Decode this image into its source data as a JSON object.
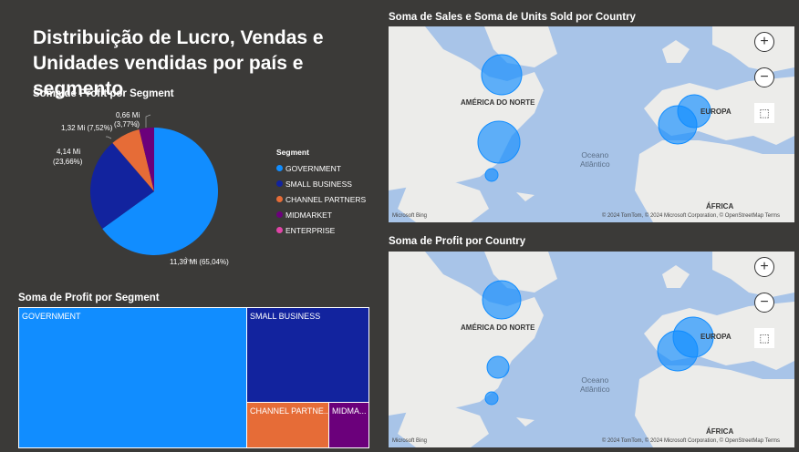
{
  "report": {
    "title": "Distribuição de Lucro, Vendas e Unidades vendidas por país e segmento"
  },
  "pie": {
    "title": "Soma de Profit por Segment",
    "labels": {
      "government": "11,39 Mi (65,04%)",
      "small_business_1": "4,14 Mi",
      "small_business_2": "(23,66%)",
      "channel_partners": "1,32 Mi (7,52%)",
      "midmarket_1": "0,66 Mi",
      "midmarket_2": "(3,77%)"
    },
    "legend_title": "Segment",
    "legend": [
      {
        "label": "GOVERNMENT",
        "color": "#118dff"
      },
      {
        "label": "SMALL BUSINESS",
        "color": "#12239e"
      },
      {
        "label": "CHANNEL PARTNERS",
        "color": "#e66c37"
      },
      {
        "label": "MIDMARKET",
        "color": "#6b007b"
      },
      {
        "label": "ENTERPRISE",
        "color": "#e044a7"
      }
    ]
  },
  "treemap": {
    "title": "Soma de Profit por Segment",
    "tiles": {
      "government": "GOVERNMENT",
      "small_business": "SMALL BUSINESS",
      "channel_partners": "CHANNEL PARTNE...",
      "midmarket": "MIDMA..."
    }
  },
  "map1": {
    "title": "Soma de Sales e Soma de Units Sold por Country",
    "labels": {
      "north_america": "AMÉRICA DO NORTE",
      "europe": "EUROPA",
      "africa": "ÁFRICA",
      "ocean_1": "Oceano",
      "ocean_2": "Atlântico"
    },
    "zoom_in": "+",
    "zoom_out": "−",
    "select": "⬚",
    "bing": "Microsoft Bing",
    "copyright": "© 2024 TomTom, © 2024 Microsoft Corporation, © OpenStreetMap  Terms"
  },
  "map2": {
    "title": "Soma de Profit por Country",
    "labels": {
      "north_america": "AMÉRICA DO NORTE",
      "europe": "EUROPA",
      "africa": "ÁFRICA",
      "ocean_1": "Oceano",
      "ocean_2": "Atlântico"
    },
    "zoom_in": "+",
    "zoom_out": "−",
    "select": "⬚",
    "bing": "Microsoft Bing",
    "copyright": "© 2024 TomTom, © 2024 Microsoft Corporation, © OpenStreetMap  Terms"
  },
  "chart_data": [
    {
      "type": "pie",
      "title": "Soma de Profit por Segment",
      "categories": [
        "GOVERNMENT",
        "SMALL BUSINESS",
        "CHANNEL PARTNERS",
        "MIDMARKET"
      ],
      "values": [
        11.39,
        4.14,
        1.32,
        0.66
      ],
      "percentages": [
        65.04,
        23.66,
        7.52,
        3.77
      ],
      "legend_position": "right"
    },
    {
      "type": "treemap",
      "title": "Soma de Profit por Segment",
      "categories": [
        "GOVERNMENT",
        "SMALL BUSINESS",
        "CHANNEL PARTNERS",
        "MIDMARKET"
      ],
      "values": [
        11.39,
        4.14,
        1.32,
        0.66
      ]
    }
  ]
}
